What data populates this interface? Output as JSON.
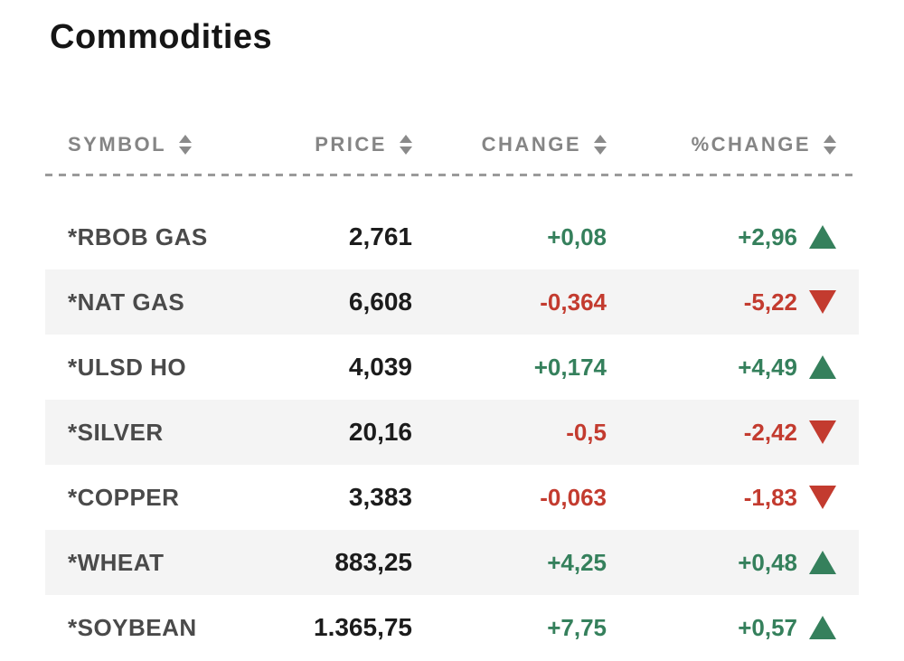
{
  "page": {
    "title": "Commodities"
  },
  "table": {
    "columns": [
      {
        "label": "SYMBOL"
      },
      {
        "label": "PRICE"
      },
      {
        "label": "CHANGE"
      },
      {
        "label": "%CHANGE"
      }
    ],
    "sort_icon": "up-down-triangles",
    "rows": [
      {
        "symbol": "*RBOB GAS",
        "price": "2,761",
        "change": "+0,08",
        "pct_change": "+2,96",
        "direction": "up"
      },
      {
        "symbol": "*NAT GAS",
        "price": "6,608",
        "change": "-0,364",
        "pct_change": "-5,22",
        "direction": "down"
      },
      {
        "symbol": "*ULSD HO",
        "price": "4,039",
        "change": "+0,174",
        "pct_change": "+4,49",
        "direction": "up"
      },
      {
        "symbol": "*SILVER",
        "price": "20,16",
        "change": "-0,5",
        "pct_change": "-2,42",
        "direction": "down"
      },
      {
        "symbol": "*COPPER",
        "price": "3,383",
        "change": "-0,063",
        "pct_change": "-1,83",
        "direction": "down"
      },
      {
        "symbol": "*WHEAT",
        "price": "883,25",
        "change": "+4,25",
        "pct_change": "+0,48",
        "direction": "up"
      },
      {
        "symbol": "*SOYBEAN",
        "price": "1.365,75",
        "change": "+7,75",
        "pct_change": "+0,57",
        "direction": "up"
      }
    ]
  },
  "theme": {
    "title": "#151515",
    "header-gray": "#858585",
    "symbol": "#4a4a4a",
    "price": "#1c1c1c",
    "up": "#35805C",
    "down": "#C33B2F",
    "stripe": "#f4f4f4",
    "dash": "#9b9b9b",
    "sort": "#8a8a8a"
  }
}
